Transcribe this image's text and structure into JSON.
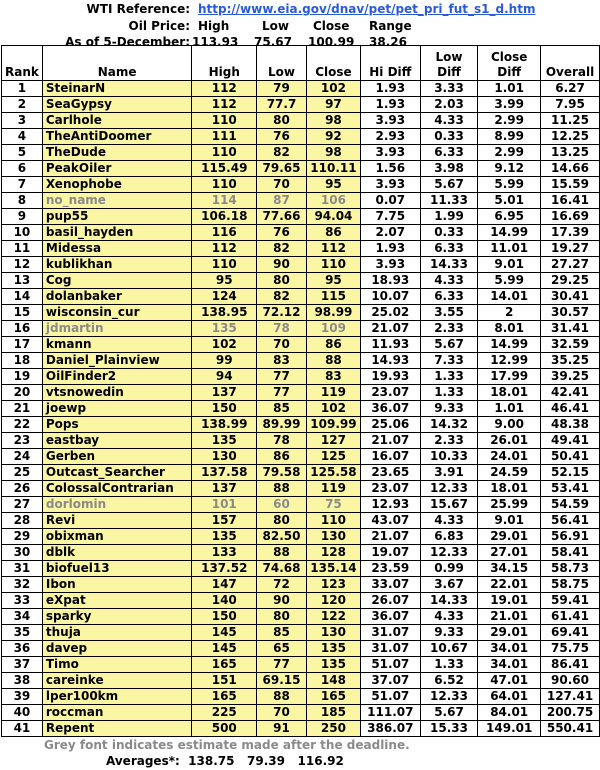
{
  "reference": {
    "label": "WTI Reference:",
    "link": "http://www.eia.gov/dnav/pet/pet_pri_fut_s1_d.htm"
  },
  "oil_price": {
    "label": "Oil Price:",
    "headers": [
      "High",
      "Low",
      "Close",
      "Range"
    ]
  },
  "as_of": {
    "label": "As of 5-December:",
    "values": [
      "113.93",
      "75.67",
      "100.99",
      "38.26"
    ]
  },
  "columns": [
    "Rank",
    "Name",
    "High",
    "Low",
    "Close",
    "Hi Diff",
    "Low Diff",
    "Close Diff",
    "Overall"
  ],
  "colors": {
    "highlight": "#fbf6a4",
    "grey_text": "#8a8a8a",
    "link": "#2a5bd7"
  },
  "rows": [
    [
      "1",
      "SteinarN",
      "112",
      "79",
      "102",
      "1.93",
      "3.33",
      "1.01",
      "6.27",
      false
    ],
    [
      "2",
      "SeaGypsy",
      "112",
      "77.7",
      "97",
      "1.93",
      "2.03",
      "3.99",
      "7.95",
      false
    ],
    [
      "3",
      "Carlhole",
      "110",
      "80",
      "98",
      "3.93",
      "4.33",
      "2.99",
      "11.25",
      false
    ],
    [
      "4",
      "TheAntiDoomer",
      "111",
      "76",
      "92",
      "2.93",
      "0.33",
      "8.99",
      "12.25",
      false
    ],
    [
      "5",
      "TheDude",
      "110",
      "82",
      "98",
      "3.93",
      "6.33",
      "2.99",
      "13.25",
      false
    ],
    [
      "6",
      "PeakOiler",
      "115.49",
      "79.65",
      "110.11",
      "1.56",
      "3.98",
      "9.12",
      "14.66",
      false
    ],
    [
      "7",
      "Xenophobe",
      "110",
      "70",
      "95",
      "3.93",
      "5.67",
      "5.99",
      "15.59",
      false
    ],
    [
      "8",
      "no_name",
      "114",
      "87",
      "106",
      "0.07",
      "11.33",
      "5.01",
      "16.41",
      true
    ],
    [
      "9",
      "pup55",
      "106.18",
      "77.66",
      "94.04",
      "7.75",
      "1.99",
      "6.95",
      "16.69",
      false
    ],
    [
      "10",
      "basil_hayden",
      "116",
      "76",
      "86",
      "2.07",
      "0.33",
      "14.99",
      "17.39",
      false
    ],
    [
      "11",
      "Midessa",
      "112",
      "82",
      "112",
      "1.93",
      "6.33",
      "11.01",
      "19.27",
      false
    ],
    [
      "12",
      "kublikhan",
      "110",
      "90",
      "110",
      "3.93",
      "14.33",
      "9.01",
      "27.27",
      false
    ],
    [
      "13",
      "Cog",
      "95",
      "80",
      "95",
      "18.93",
      "4.33",
      "5.99",
      "29.25",
      false
    ],
    [
      "14",
      "dolanbaker",
      "124",
      "82",
      "115",
      "10.07",
      "6.33",
      "14.01",
      "30.41",
      false
    ],
    [
      "15",
      "wisconsin_cur",
      "138.95",
      "72.12",
      "98.99",
      "25.02",
      "3.55",
      "2",
      "30.57",
      false
    ],
    [
      "16",
      "jdmartin",
      "135",
      "78",
      "109",
      "21.07",
      "2.33",
      "8.01",
      "31.41",
      true
    ],
    [
      "17",
      "kmann",
      "102",
      "70",
      "86",
      "11.93",
      "5.67",
      "14.99",
      "32.59",
      false
    ],
    [
      "18",
      "Daniel_Plainview",
      "99",
      "83",
      "88",
      "14.93",
      "7.33",
      "12.99",
      "35.25",
      false
    ],
    [
      "19",
      "OilFinder2",
      "94",
      "77",
      "83",
      "19.93",
      "1.33",
      "17.99",
      "39.25",
      false
    ],
    [
      "20",
      "vtsnowedin",
      "137",
      "77",
      "119",
      "23.07",
      "1.33",
      "18.01",
      "42.41",
      false
    ],
    [
      "21",
      "joewp",
      "150",
      "85",
      "102",
      "36.07",
      "9.33",
      "1.01",
      "46.41",
      false
    ],
    [
      "22",
      "Pops",
      "138.99",
      "89.99",
      "109.99",
      "25.06",
      "14.32",
      "9.00",
      "48.38",
      false
    ],
    [
      "23",
      "eastbay",
      "135",
      "78",
      "127",
      "21.07",
      "2.33",
      "26.01",
      "49.41",
      false
    ],
    [
      "24",
      "Gerben",
      "130",
      "86",
      "125",
      "16.07",
      "10.33",
      "24.01",
      "50.41",
      false
    ],
    [
      "25",
      "Outcast_Searcher",
      "137.58",
      "79.58",
      "125.58",
      "23.65",
      "3.91",
      "24.59",
      "52.15",
      false
    ],
    [
      "26",
      "ColossalContrarian",
      "137",
      "88",
      "119",
      "23.07",
      "12.33",
      "18.01",
      "53.41",
      false
    ],
    [
      "27",
      "dorlomin",
      "101",
      "60",
      "75",
      "12.93",
      "15.67",
      "25.99",
      "54.59",
      true
    ],
    [
      "28",
      "Revi",
      "157",
      "80",
      "110",
      "43.07",
      "4.33",
      "9.01",
      "56.41",
      false
    ],
    [
      "29",
      "obixman",
      "135",
      "82.50",
      "130",
      "21.07",
      "6.83",
      "29.01",
      "56.91",
      false
    ],
    [
      "30",
      "dblk",
      "133",
      "88",
      "128",
      "19.07",
      "12.33",
      "27.01",
      "58.41",
      false
    ],
    [
      "31",
      "biofuel13",
      "137.52",
      "74.68",
      "135.14",
      "23.59",
      "0.99",
      "34.15",
      "58.73",
      false
    ],
    [
      "32",
      "Ibon",
      "147",
      "72",
      "123",
      "33.07",
      "3.67",
      "22.01",
      "58.75",
      false
    ],
    [
      "33",
      "eXpat",
      "140",
      "90",
      "120",
      "26.07",
      "14.33",
      "19.01",
      "59.41",
      false
    ],
    [
      "34",
      "sparky",
      "150",
      "80",
      "122",
      "36.07",
      "4.33",
      "21.01",
      "61.41",
      false
    ],
    [
      "35",
      "thuja",
      "145",
      "85",
      "130",
      "31.07",
      "9.33",
      "29.01",
      "69.41",
      false
    ],
    [
      "36",
      "davep",
      "145",
      "65",
      "135",
      "31.07",
      "10.67",
      "34.01",
      "75.75",
      false
    ],
    [
      "37",
      "Timo",
      "165",
      "77",
      "135",
      "51.07",
      "1.33",
      "34.01",
      "86.41",
      false
    ],
    [
      "38",
      "careinke",
      "151",
      "69.15",
      "148",
      "37.07",
      "6.52",
      "47.01",
      "90.60",
      false
    ],
    [
      "39",
      "lper100km",
      "165",
      "88",
      "165",
      "51.07",
      "12.33",
      "64.01",
      "127.41",
      false
    ],
    [
      "40",
      "roccman",
      "225",
      "70",
      "185",
      "111.07",
      "5.67",
      "84.01",
      "200.75",
      false
    ],
    [
      "41",
      "Repent",
      "500",
      "91",
      "250",
      "386.07",
      "15.33",
      "149.01",
      "550.41",
      false
    ]
  ],
  "footnote": "Grey font indicates estimate made after the deadline.",
  "averages": {
    "label": "Averages*:",
    "values": [
      "138.75",
      "79.39",
      "116.92"
    ]
  }
}
